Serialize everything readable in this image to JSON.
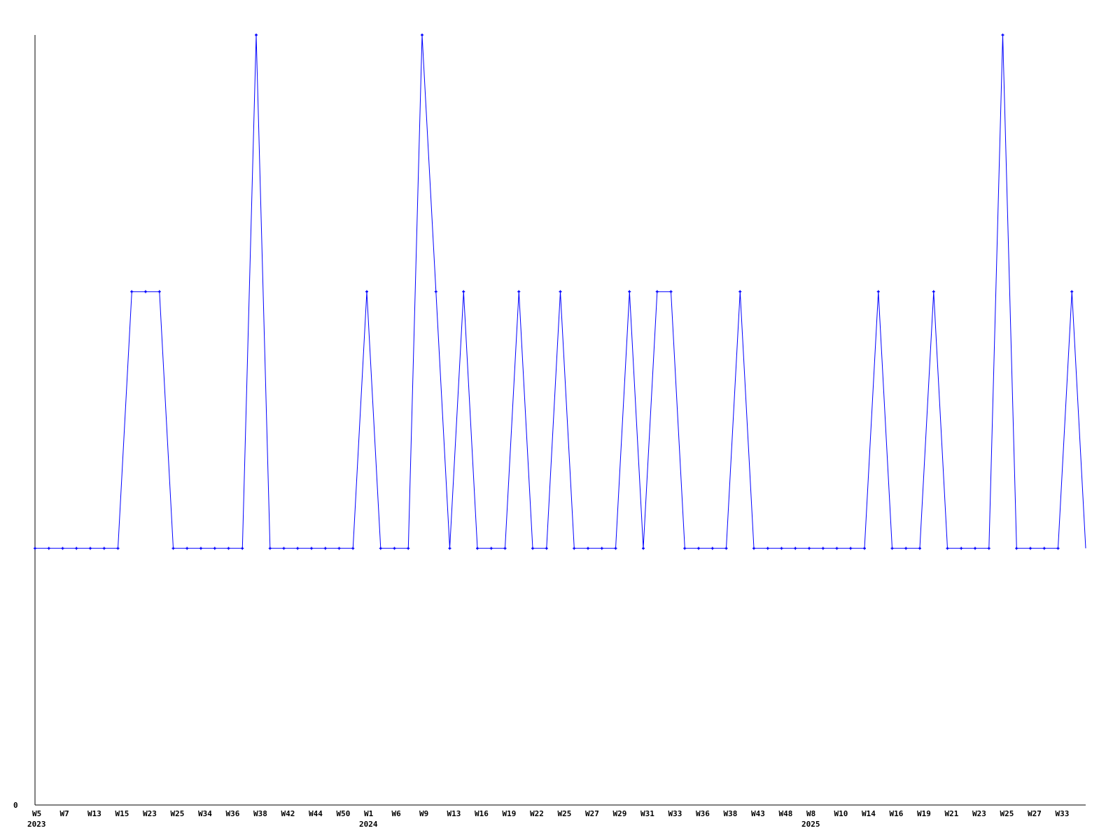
{
  "chart_data": {
    "type": "line",
    "title": "",
    "xlabel": "",
    "ylabel": "",
    "ylim": [
      0,
      3
    ],
    "grid": false,
    "y_ticks": [
      "0"
    ],
    "x_tick_labels": [
      "W5",
      "W7",
      "W13",
      "W15",
      "W23",
      "W25",
      "W34",
      "W36",
      "W38",
      "W42",
      "W44",
      "W50",
      "W1",
      "W6",
      "W9",
      "W13",
      "W16",
      "W19",
      "W22",
      "W25",
      "W27",
      "W29",
      "W31",
      "W33",
      "W36",
      "W38",
      "W43",
      "W48",
      "W8",
      "W10",
      "W14",
      "W16",
      "W19",
      "W21",
      "W23",
      "W25",
      "W27",
      "W33"
    ],
    "year_labels": [
      {
        "label": "2023",
        "at_tick": 0
      },
      {
        "label": "2024",
        "at_tick": 12
      },
      {
        "label": "2025",
        "at_tick": 28
      }
    ],
    "series_color": "#0000ff",
    "values": [
      1,
      1,
      1,
      1,
      1,
      1,
      1,
      2,
      2,
      2,
      1,
      1,
      1,
      1,
      1,
      1,
      3,
      1,
      1,
      1,
      1,
      1,
      1,
      1,
      2,
      1,
      1,
      1,
      3,
      2,
      1,
      2,
      1,
      1,
      1,
      2,
      1,
      1,
      2,
      1,
      1,
      1,
      1,
      2,
      1,
      2,
      2,
      1,
      1,
      1,
      1,
      2,
      1,
      1,
      1,
      1,
      1,
      1,
      1,
      1,
      1,
      2,
      1,
      1,
      1,
      2,
      1,
      1,
      1,
      1,
      3,
      1,
      1,
      1,
      1,
      2,
      1
    ]
  }
}
